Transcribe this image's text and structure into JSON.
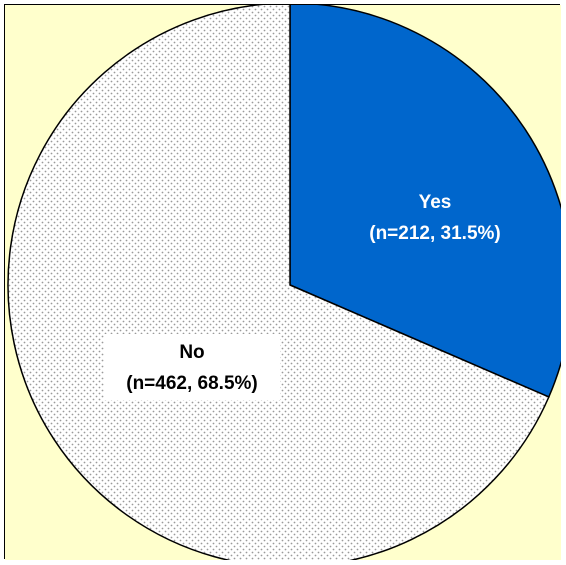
{
  "chart_data": {
    "type": "pie",
    "background_color": "#FFFFCC",
    "slices": [
      {
        "name": "Yes",
        "label_line1": "Yes",
        "label_line2": "(n=212, 31.5%)",
        "n": 212,
        "percent": 31.5,
        "color": "#0066CC",
        "pattern": "solid",
        "label_color": "#FFFFFF"
      },
      {
        "name": "No",
        "label_line1": "No",
        "label_line2": "(n=462, 68.5%)",
        "n": 462,
        "percent": 68.5,
        "color": "#FFFFFF",
        "pattern": "dotted",
        "label_color": "#000000"
      }
    ]
  }
}
